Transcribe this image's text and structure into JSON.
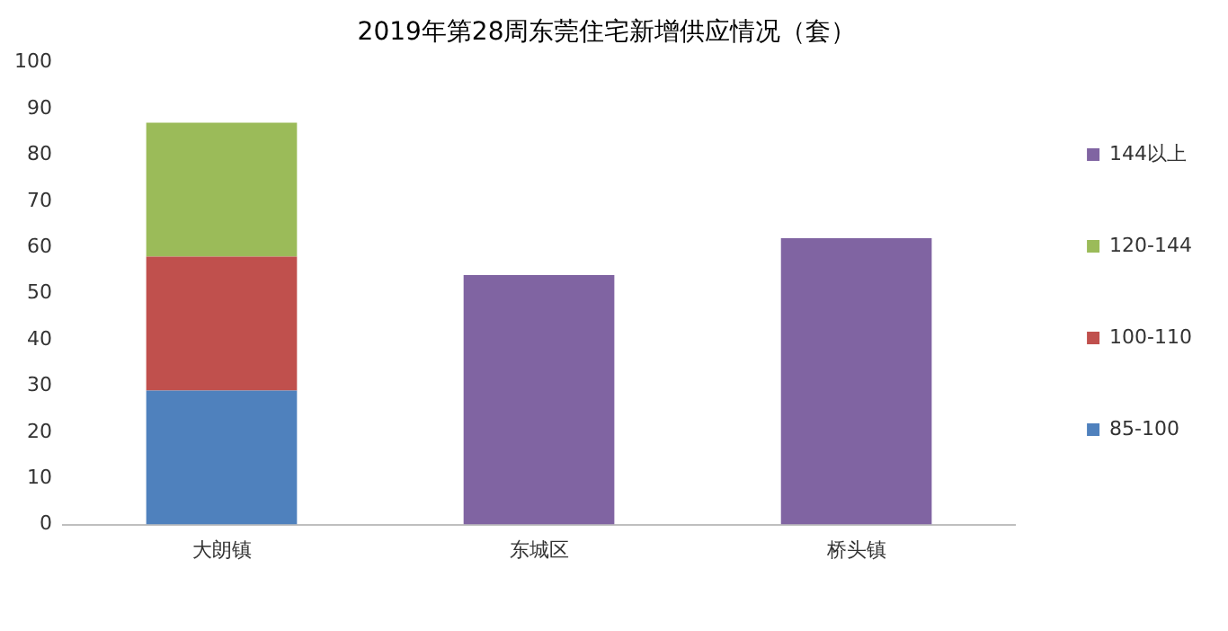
{
  "chart_data": {
    "type": "bar",
    "title": "2019年第28周东莞住宅新增供应情况（套）",
    "categories": [
      "大朗镇",
      "东城区",
      "桥头镇"
    ],
    "stacked": true,
    "series": [
      {
        "name": "85-100",
        "color": "#4f81bd",
        "values": [
          29,
          null,
          null
        ]
      },
      {
        "name": "100-110",
        "color": "#c0504d",
        "values": [
          29,
          null,
          null
        ]
      },
      {
        "name": "120-144",
        "color": "#9bbb59",
        "values": [
          29,
          null,
          null
        ]
      },
      {
        "name": "144以上",
        "color": "#8064a2",
        "values": [
          null,
          54,
          62
        ]
      }
    ],
    "ylim": [
      0,
      100
    ],
    "yticks": [
      0,
      10,
      20,
      30,
      40,
      50,
      60,
      70,
      80,
      90,
      100
    ],
    "grid": false,
    "legend": "right"
  }
}
